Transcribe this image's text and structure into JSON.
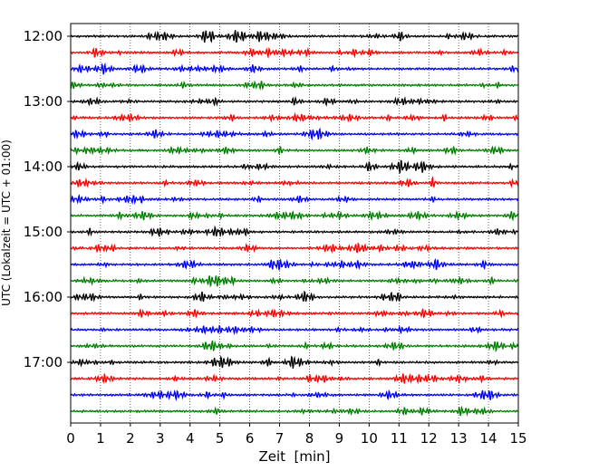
{
  "chart_data": {
    "type": "line",
    "title": "",
    "xlabel": "Zeit  [min]",
    "ylabel": "UTC (Lokalzeit = UTC + 01:00)",
    "xlim": [
      0,
      15
    ],
    "x_ticks": [
      0,
      1,
      2,
      3,
      4,
      5,
      6,
      7,
      8,
      9,
      10,
      11,
      12,
      13,
      14,
      15
    ],
    "x_tick_labels": [
      "0",
      "1",
      "2",
      "3",
      "4",
      "5",
      "6",
      "7",
      "8",
      "9",
      "10",
      "11",
      "12",
      "13",
      "14",
      "15"
    ],
    "y_tick_labels": [
      "12:00",
      "13:00",
      "14:00",
      "15:00",
      "16:00",
      "17:00"
    ],
    "trace_interval_min": 15,
    "trace_start_times": [
      "12:00",
      "12:15",
      "12:30",
      "12:45",
      "13:00",
      "13:15",
      "13:30",
      "13:45",
      "14:00",
      "14:15",
      "14:30",
      "14:45",
      "15:00",
      "15:15",
      "15:30",
      "15:45",
      "16:00",
      "16:15",
      "16:30",
      "16:45",
      "17:00",
      "17:15",
      "17:30",
      "17:45"
    ],
    "colors": [
      "#000000",
      "#ff0000",
      "#0000ff",
      "#008000"
    ],
    "grid": "vertical dotted",
    "legend": "none"
  }
}
